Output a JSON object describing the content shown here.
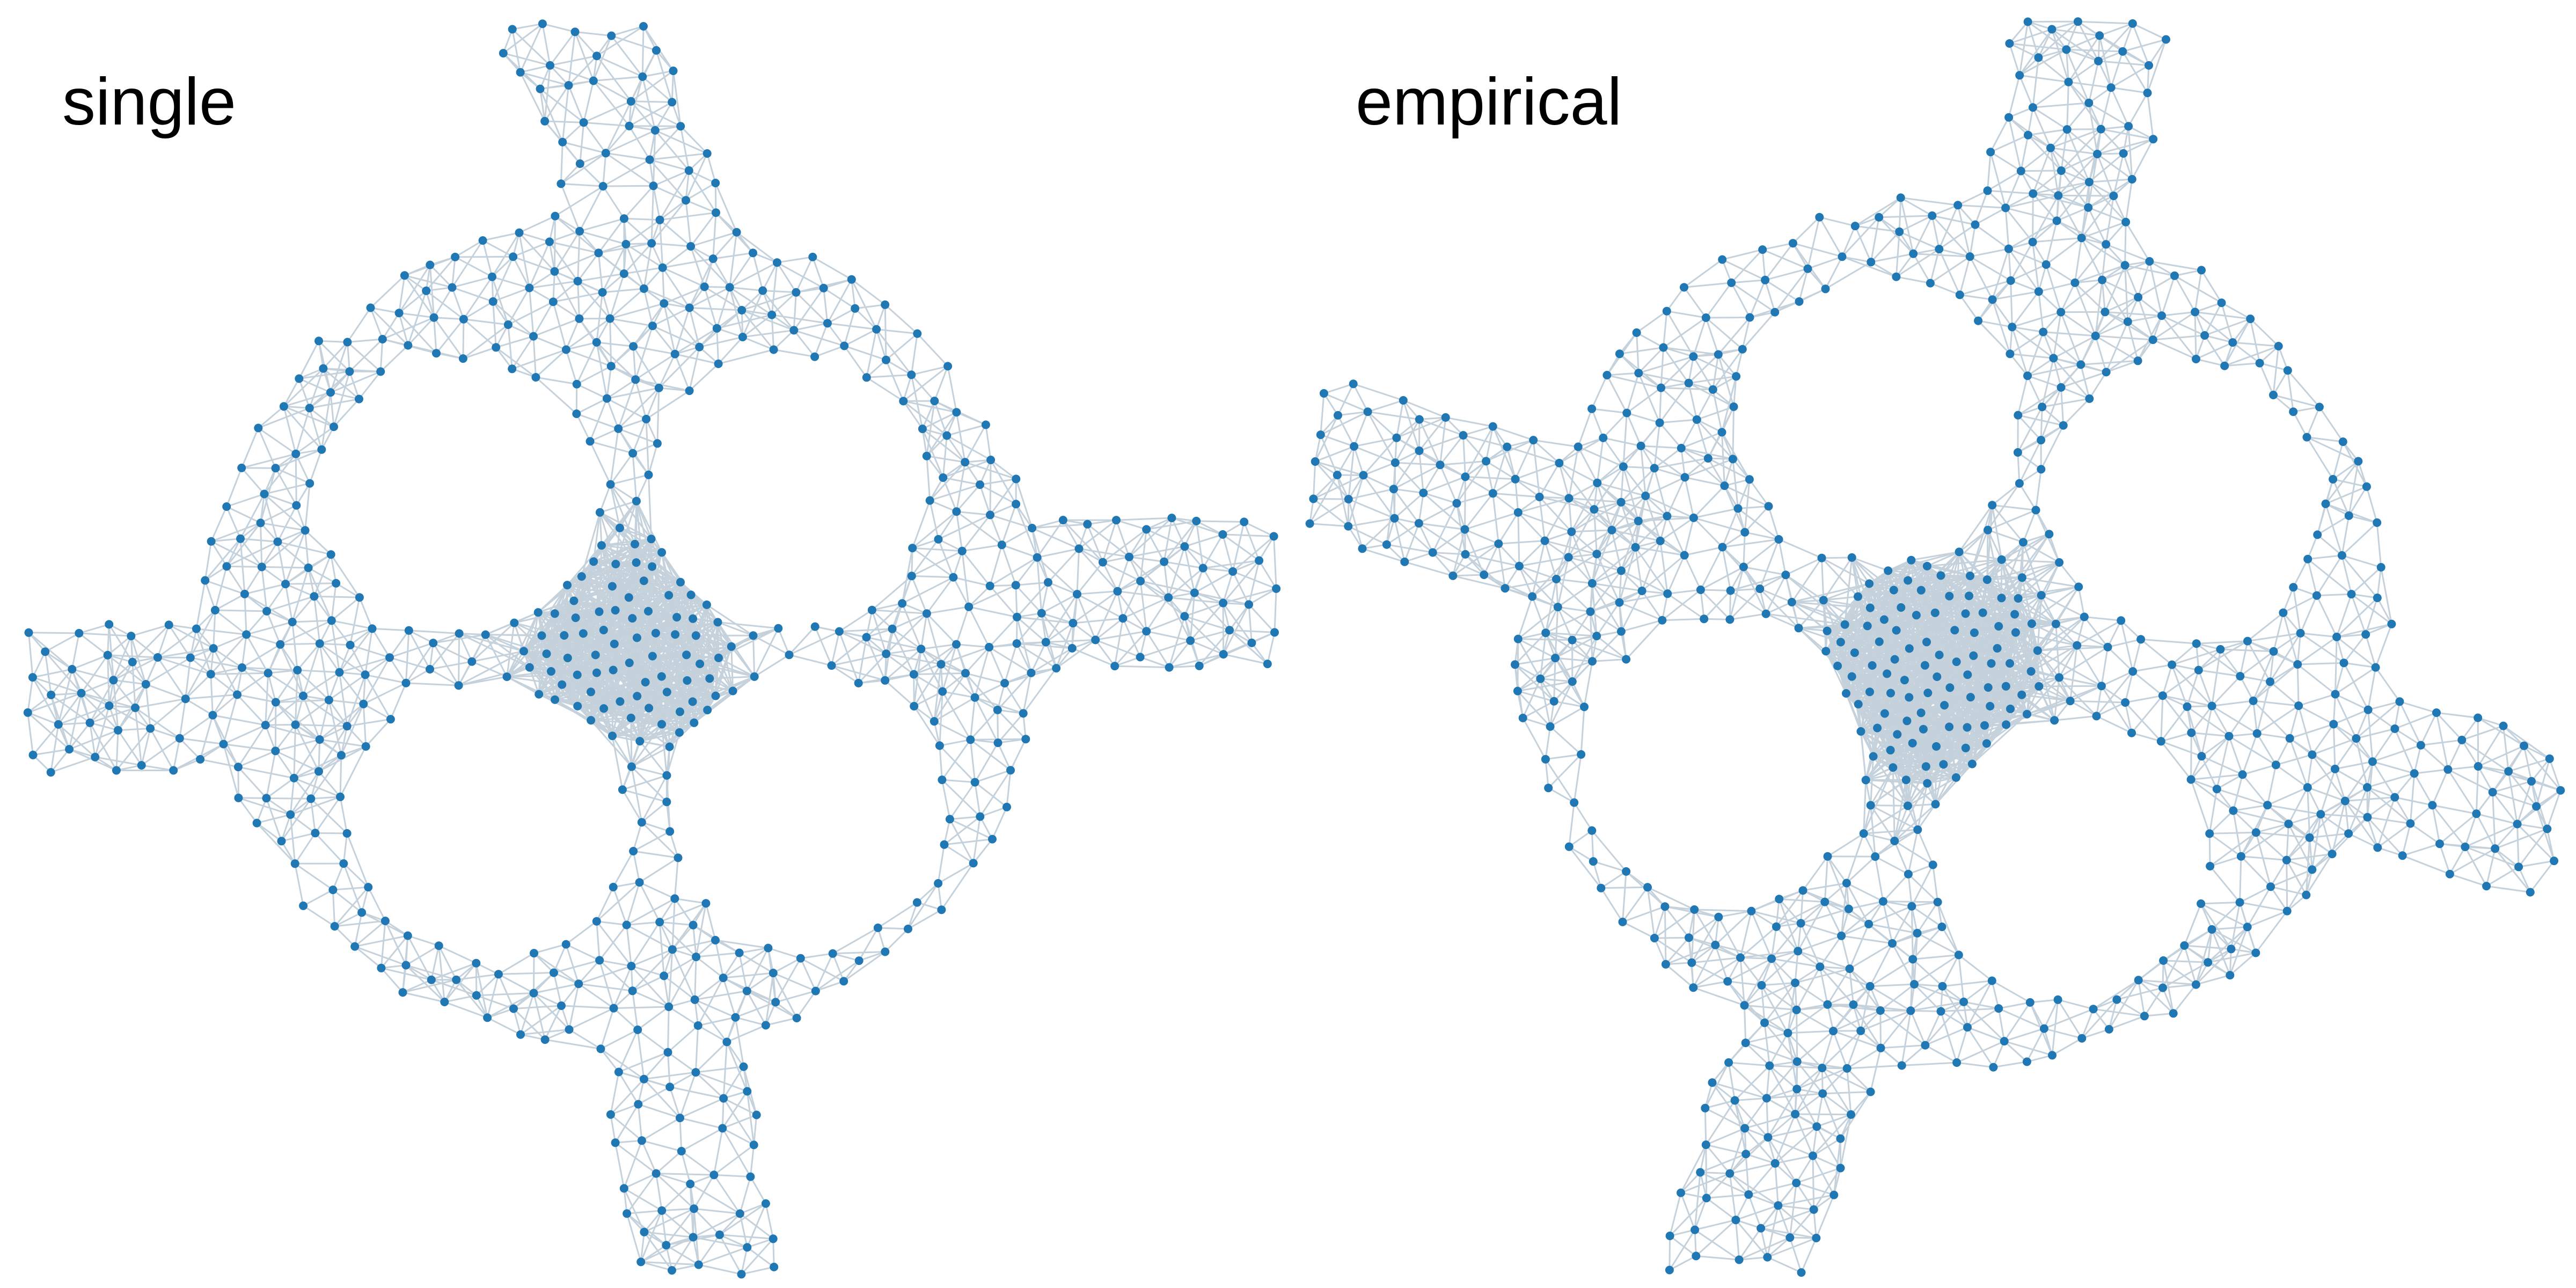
{
  "figure": {
    "panels": [
      {
        "id": "single",
        "label": "single"
      },
      {
        "id": "empirical",
        "label": "empirical"
      }
    ]
  },
  "style": {
    "node_color": "#1f77b4",
    "edge_color": "#c5d2dc",
    "background": "#ffffff"
  }
}
